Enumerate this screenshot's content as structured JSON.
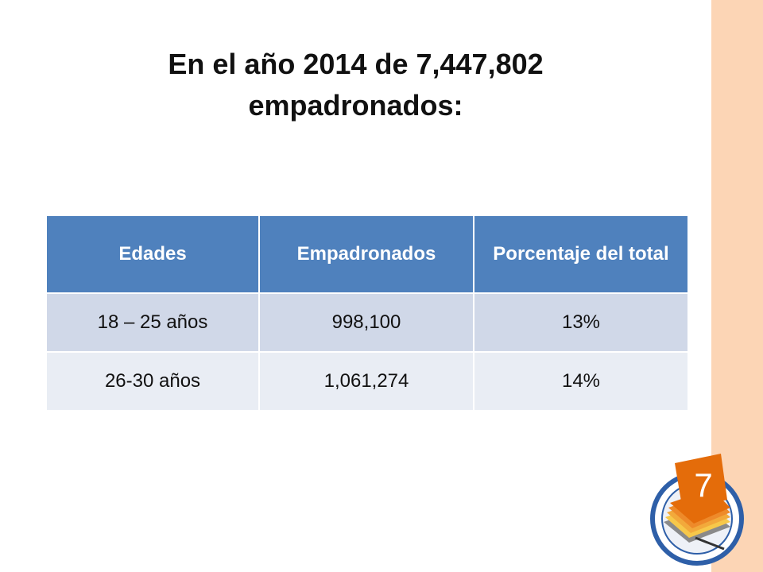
{
  "slide": {
    "title_line1": "En el año 2014 de 7,447,802",
    "title_line2": "empadronados:"
  },
  "table": {
    "headers": [
      "Edades",
      "Empadronados",
      "Porcentaje del total"
    ],
    "rows": [
      [
        "18 – 25 años",
        "998,100",
        "13%"
      ],
      [
        "26-30 años",
        "1,061,274",
        "14%"
      ]
    ]
  },
  "logo": {
    "number": "7",
    "icon": "conference-seal-icon"
  },
  "colors": {
    "header_bg": "#4f81bd",
    "row_odd_bg": "#d0d8e8",
    "row_even_bg": "#e9edf4",
    "side_band": "#fcd5b5",
    "logo_orange": "#e46c0a",
    "logo_blue": "#2e5fa8"
  }
}
